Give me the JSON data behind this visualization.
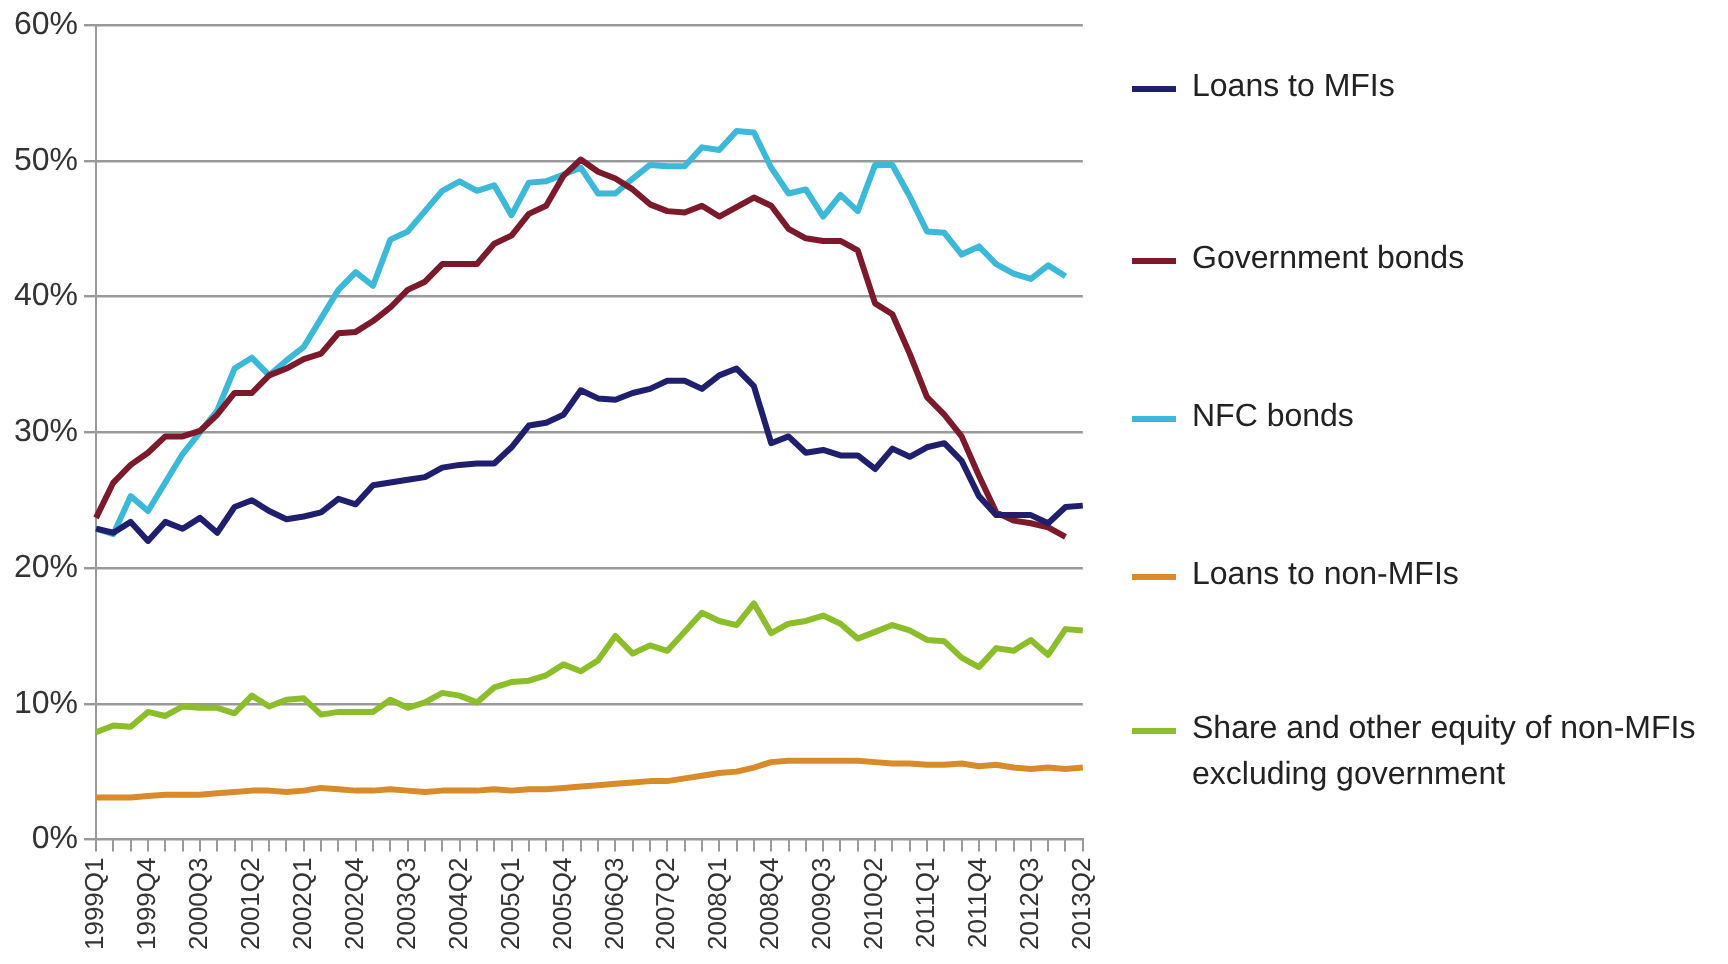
{
  "chart_data": {
    "type": "line",
    "categories": [
      "1999Q1",
      null,
      null,
      "1999Q4",
      null,
      null,
      "2000Q3",
      null,
      null,
      "2001Q2",
      null,
      null,
      "2002Q1",
      null,
      null,
      "2002Q4",
      null,
      null,
      "2003Q3",
      null,
      null,
      "2004Q2",
      null,
      null,
      "2005Q1",
      null,
      null,
      "2005Q4",
      null,
      null,
      "2006Q3",
      null,
      null,
      "2007Q2",
      null,
      null,
      "2008Q1",
      null,
      null,
      "2008Q4",
      null,
      null,
      "2009Q3",
      null,
      null,
      "2010Q2",
      null,
      null,
      "2011Q1",
      null,
      null,
      "2011Q4",
      null,
      null,
      "2012Q3",
      null,
      null,
      "2013Q2"
    ],
    "series": [
      {
        "name": "Loans to MFIs",
        "color": "#1f1f6e",
        "values": [
          22.9,
          22.6,
          23.4,
          22.0,
          23.4,
          22.9,
          23.7,
          22.6,
          24.5,
          25.0,
          24.2,
          23.6,
          23.8,
          24.1,
          25.1,
          24.7,
          26.1,
          26.3,
          26.5,
          26.7,
          27.4,
          27.6,
          27.7,
          27.7,
          28.9,
          30.5,
          30.7,
          31.3,
          33.1,
          32.5,
          32.4,
          32.9,
          33.2,
          33.8,
          33.8,
          33.2,
          34.2,
          34.7,
          33.4,
          29.2,
          29.7,
          28.5,
          28.7,
          28.3,
          28.3,
          27.3,
          28.8,
          28.2,
          28.9,
          29.2,
          27.9,
          25.3,
          23.9,
          23.9,
          23.9,
          23.3,
          24.5,
          24.6
        ]
      },
      {
        "name": "Government bonds",
        "color": "#7b1a2a",
        "values": [
          23.7,
          26.3,
          27.6,
          28.5,
          29.7,
          29.7,
          30.1,
          31.3,
          32.9,
          32.9,
          34.2,
          34.7,
          35.4,
          35.8,
          37.3,
          37.4,
          38.2,
          39.2,
          40.5,
          41.1,
          42.4,
          42.4,
          42.4,
          43.9,
          44.5,
          46.1,
          46.7,
          48.9,
          50.1,
          49.2,
          48.7,
          47.9,
          46.8,
          46.3,
          46.2,
          46.7,
          45.9,
          46.6,
          47.3,
          46.7,
          45.0,
          44.3,
          44.1,
          44.1,
          43.4,
          39.5,
          38.7,
          35.8,
          32.6,
          31.3,
          29.7,
          26.8,
          24.1,
          23.5,
          23.3,
          23.0,
          22.3,
          null
        ]
      },
      {
        "name": "NFC bonds",
        "color": "#3cb8d8",
        "values": [
          22.9,
          22.5,
          25.3,
          24.2,
          26.3,
          28.4,
          30.0,
          31.6,
          34.7,
          35.5,
          34.2,
          35.3,
          36.3,
          38.4,
          40.5,
          41.8,
          40.8,
          44.2,
          44.8,
          46.3,
          47.8,
          48.5,
          47.8,
          48.2,
          46.0,
          48.4,
          48.5,
          49.0,
          49.5,
          47.6,
          47.6,
          48.7,
          49.7,
          49.6,
          49.6,
          51.0,
          50.8,
          52.2,
          52.1,
          49.5,
          47.6,
          47.9,
          45.9,
          47.5,
          46.3,
          49.7,
          49.7,
          47.4,
          44.8,
          44.7,
          43.1,
          43.7,
          42.4,
          41.7,
          41.3,
          42.3,
          41.5,
          null
        ]
      },
      {
        "name": "Loans to non-MFIs",
        "color": "#d98a2b",
        "values": [
          3.1,
          3.1,
          3.1,
          3.2,
          3.3,
          3.3,
          3.3,
          3.4,
          3.5,
          3.6,
          3.6,
          3.5,
          3.6,
          3.8,
          3.7,
          3.6,
          3.6,
          3.7,
          3.6,
          3.5,
          3.6,
          3.6,
          3.6,
          3.7,
          3.6,
          3.7,
          3.7,
          3.8,
          3.9,
          4.0,
          4.1,
          4.2,
          4.3,
          4.3,
          4.5,
          4.7,
          4.9,
          5.0,
          5.3,
          5.7,
          5.8,
          5.8,
          5.8,
          5.8,
          5.8,
          5.7,
          5.6,
          5.6,
          5.5,
          5.5,
          5.6,
          5.4,
          5.5,
          5.3,
          5.2,
          5.3,
          5.2,
          5.3
        ]
      },
      {
        "name": "Share and other equity of non-MFIs excluding government",
        "color": "#8cbd2a",
        "values": [
          7.9,
          8.4,
          8.3,
          9.4,
          9.1,
          9.8,
          9.7,
          9.7,
          9.3,
          10.6,
          9.8,
          10.3,
          10.4,
          9.2,
          9.4,
          9.4,
          9.4,
          10.3,
          9.7,
          10.1,
          10.8,
          10.6,
          10.1,
          11.2,
          11.6,
          11.7,
          12.1,
          12.9,
          12.4,
          13.2,
          15.0,
          13.7,
          14.3,
          13.9,
          15.3,
          16.7,
          16.1,
          15.8,
          17.4,
          15.2,
          15.9,
          16.1,
          16.5,
          15.9,
          14.8,
          15.3,
          15.8,
          15.4,
          14.7,
          14.6,
          13.4,
          12.7,
          14.1,
          13.9,
          14.7,
          13.6,
          15.5,
          15.4
        ]
      }
    ],
    "ylim": [
      0,
      60
    ],
    "yticks": [
      {
        "value": 0,
        "label": "0%"
      },
      {
        "value": 10,
        "label": "10%"
      },
      {
        "value": 20,
        "label": "20%"
      },
      {
        "value": 30,
        "label": "30%"
      },
      {
        "value": 40,
        "label": "40%"
      },
      {
        "value": 50,
        "label": "50%"
      },
      {
        "value": 60,
        "label": "60%"
      }
    ],
    "grid": "y",
    "legend": "right",
    "marker": "none",
    "line_style": "solid"
  }
}
